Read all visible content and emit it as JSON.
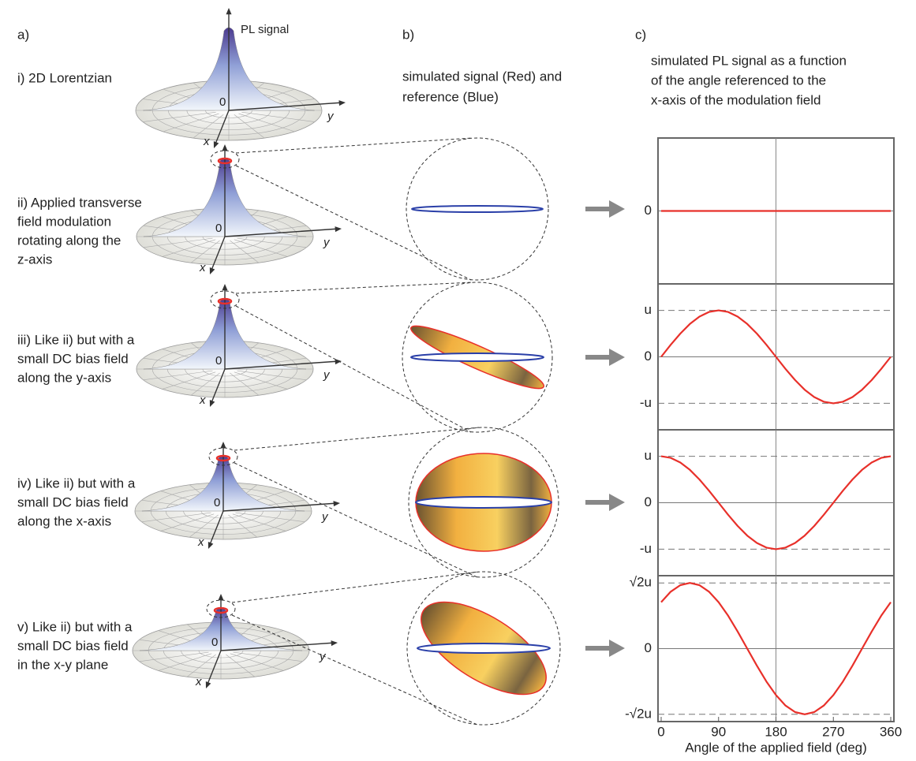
{
  "panels": {
    "a": "a)",
    "b": "b)",
    "c": "c)"
  },
  "cone_axis": {
    "z": "PL signal",
    "origin": "0",
    "x": "x",
    "y": "y"
  },
  "row_labels": [
    [
      "i) 2D Lorentzian"
    ],
    [
      "ii) Applied transverse",
      "field modulation",
      "rotating along the",
      "z-axis"
    ],
    [
      "iii) Like ii) but with a",
      "small DC bias field",
      "along the y-axis"
    ],
    [
      "iv) Like ii) but with a",
      "small DC bias field",
      "along the x-axis"
    ],
    [
      "v) Like ii) but with a",
      "small DC bias field",
      "in the x-y plane"
    ]
  ],
  "b_caption": [
    "simulated signal (Red) and",
    "reference (Blue)"
  ],
  "c_caption": [
    "simulated PL signal as a function",
    "of the angle referenced to the",
    "x-axis of the modulation field"
  ],
  "chart_data": [
    {
      "type": "line",
      "xlim": [
        0,
        360
      ],
      "ylim": [
        -1.57,
        1.57
      ],
      "yticks": [
        0
      ],
      "vlines": [
        180
      ],
      "series": [
        {
          "color": "#e8302a",
          "x": [
            0,
            360
          ],
          "values": [
            0,
            0
          ]
        }
      ]
    },
    {
      "type": "line",
      "xlim": [
        0,
        360
      ],
      "ylim": [
        -1.57,
        1.57
      ],
      "yticks": [
        {
          "value": 1,
          "label": "u"
        },
        0,
        {
          "value": -1,
          "label": "-u"
        }
      ],
      "vlines": [
        180
      ],
      "series": [
        {
          "color": "#e8302a",
          "x": [
            0,
            15,
            30,
            45,
            60,
            75,
            90,
            105,
            120,
            135,
            150,
            165,
            180,
            195,
            210,
            225,
            240,
            255,
            270,
            285,
            300,
            315,
            330,
            345,
            360
          ],
          "values": [
            0,
            0.259,
            0.5,
            0.707,
            0.866,
            0.966,
            1,
            0.966,
            0.866,
            0.707,
            0.5,
            0.259,
            0,
            -0.259,
            -0.5,
            -0.707,
            -0.866,
            -0.966,
            -1,
            -0.966,
            -0.866,
            -0.707,
            -0.5,
            -0.259,
            0
          ]
        }
      ]
    },
    {
      "type": "line",
      "xlim": [
        0,
        360
      ],
      "ylim": [
        -1.57,
        1.57
      ],
      "yticks": [
        {
          "value": 1,
          "label": "u"
        },
        0,
        {
          "value": -1,
          "label": "-u"
        }
      ],
      "vlines": [
        180
      ],
      "series": [
        {
          "color": "#e8302a",
          "x": [
            0,
            15,
            30,
            45,
            60,
            75,
            90,
            105,
            120,
            135,
            150,
            165,
            180,
            195,
            210,
            225,
            240,
            255,
            270,
            285,
            300,
            315,
            330,
            345,
            360
          ],
          "values": [
            1,
            0.966,
            0.866,
            0.707,
            0.5,
            0.259,
            0,
            -0.259,
            -0.5,
            -0.707,
            -0.866,
            -0.966,
            -1,
            -0.966,
            -0.866,
            -0.707,
            -0.5,
            -0.259,
            0,
            0.259,
            0.5,
            0.707,
            0.866,
            0.966,
            1
          ]
        }
      ]
    },
    {
      "type": "line",
      "xlim": [
        0,
        360
      ],
      "ylim": [
        -1.57,
        1.57
      ],
      "yticks": [
        {
          "value": 1.414,
          "label": "√2u"
        },
        0,
        {
          "value": -1.414,
          "label": "-√2u"
        }
      ],
      "vlines": [
        180
      ],
      "xticks": [
        0,
        90,
        180,
        270,
        360
      ],
      "xlabel": "Angle of the applied field (deg)",
      "series": [
        {
          "color": "#e8302a",
          "x": [
            0,
            15,
            30,
            45,
            60,
            75,
            90,
            105,
            120,
            135,
            150,
            165,
            180,
            195,
            210,
            225,
            240,
            255,
            270,
            285,
            300,
            315,
            330,
            345,
            360
          ],
          "values": [
            1,
            1.225,
            1.366,
            1.414,
            1.366,
            1.225,
            1,
            0.707,
            0.366,
            0,
            -0.366,
            -0.707,
            -1,
            -1.225,
            -1.366,
            -1.414,
            -1.366,
            -1.225,
            -1,
            -0.707,
            -0.366,
            0,
            0.366,
            0.707,
            1
          ]
        }
      ]
    }
  ]
}
